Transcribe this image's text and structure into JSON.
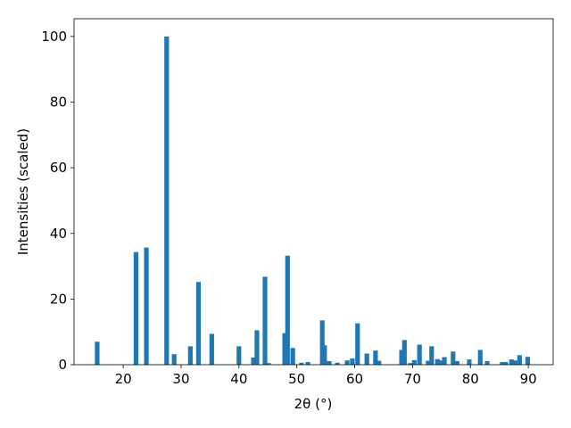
{
  "chart_data": {
    "type": "bar",
    "xlabel": "2θ (°)",
    "ylabel": "Intensities (scaled)",
    "color": "#1f77b4",
    "x": [
      15.5,
      22.2,
      24.0,
      27.5,
      28.8,
      31.6,
      33.0,
      35.3,
      40.0,
      42.5,
      43.1,
      44.5,
      45.1,
      47.9,
      48.4,
      49.3,
      50.8,
      51.9,
      54.4,
      54.8,
      55.6,
      57.0,
      58.7,
      59.6,
      60.5,
      62.1,
      63.6,
      64.2,
      68.1,
      68.6,
      69.6,
      70.3,
      71.2,
      72.7,
      73.3,
      74.3,
      74.9,
      75.5,
      77.0,
      77.7,
      79.8,
      81.7,
      82.9,
      85.5,
      86.1,
      87.1,
      87.7,
      88.5,
      89.9
    ],
    "values": [
      7.0,
      34.3,
      35.7,
      100,
      3.2,
      5.6,
      25.2,
      9.4,
      5.6,
      2.2,
      10.5,
      26.8,
      0.5,
      9.6,
      33.2,
      5.1,
      0.6,
      0.8,
      13.5,
      5.9,
      1.1,
      0.6,
      1.3,
      1.9,
      12.6,
      3.4,
      4.3,
      1.2,
      4.5,
      7.5,
      0.5,
      1.4,
      6.1,
      1.2,
      5.6,
      1.7,
      1.3,
      2.3,
      4.0,
      1.1,
      1.6,
      4.5,
      1.1,
      0.8,
      0.8,
      1.6,
      1.3,
      2.9,
      2.4
    ],
    "xlim": [
      11.5,
      94.3
    ],
    "ylim": [
      0,
      105.4
    ],
    "xticks": [
      20,
      30,
      40,
      50,
      60,
      70,
      80,
      90
    ],
    "yticks": [
      0,
      20,
      40,
      60,
      80,
      100
    ]
  }
}
